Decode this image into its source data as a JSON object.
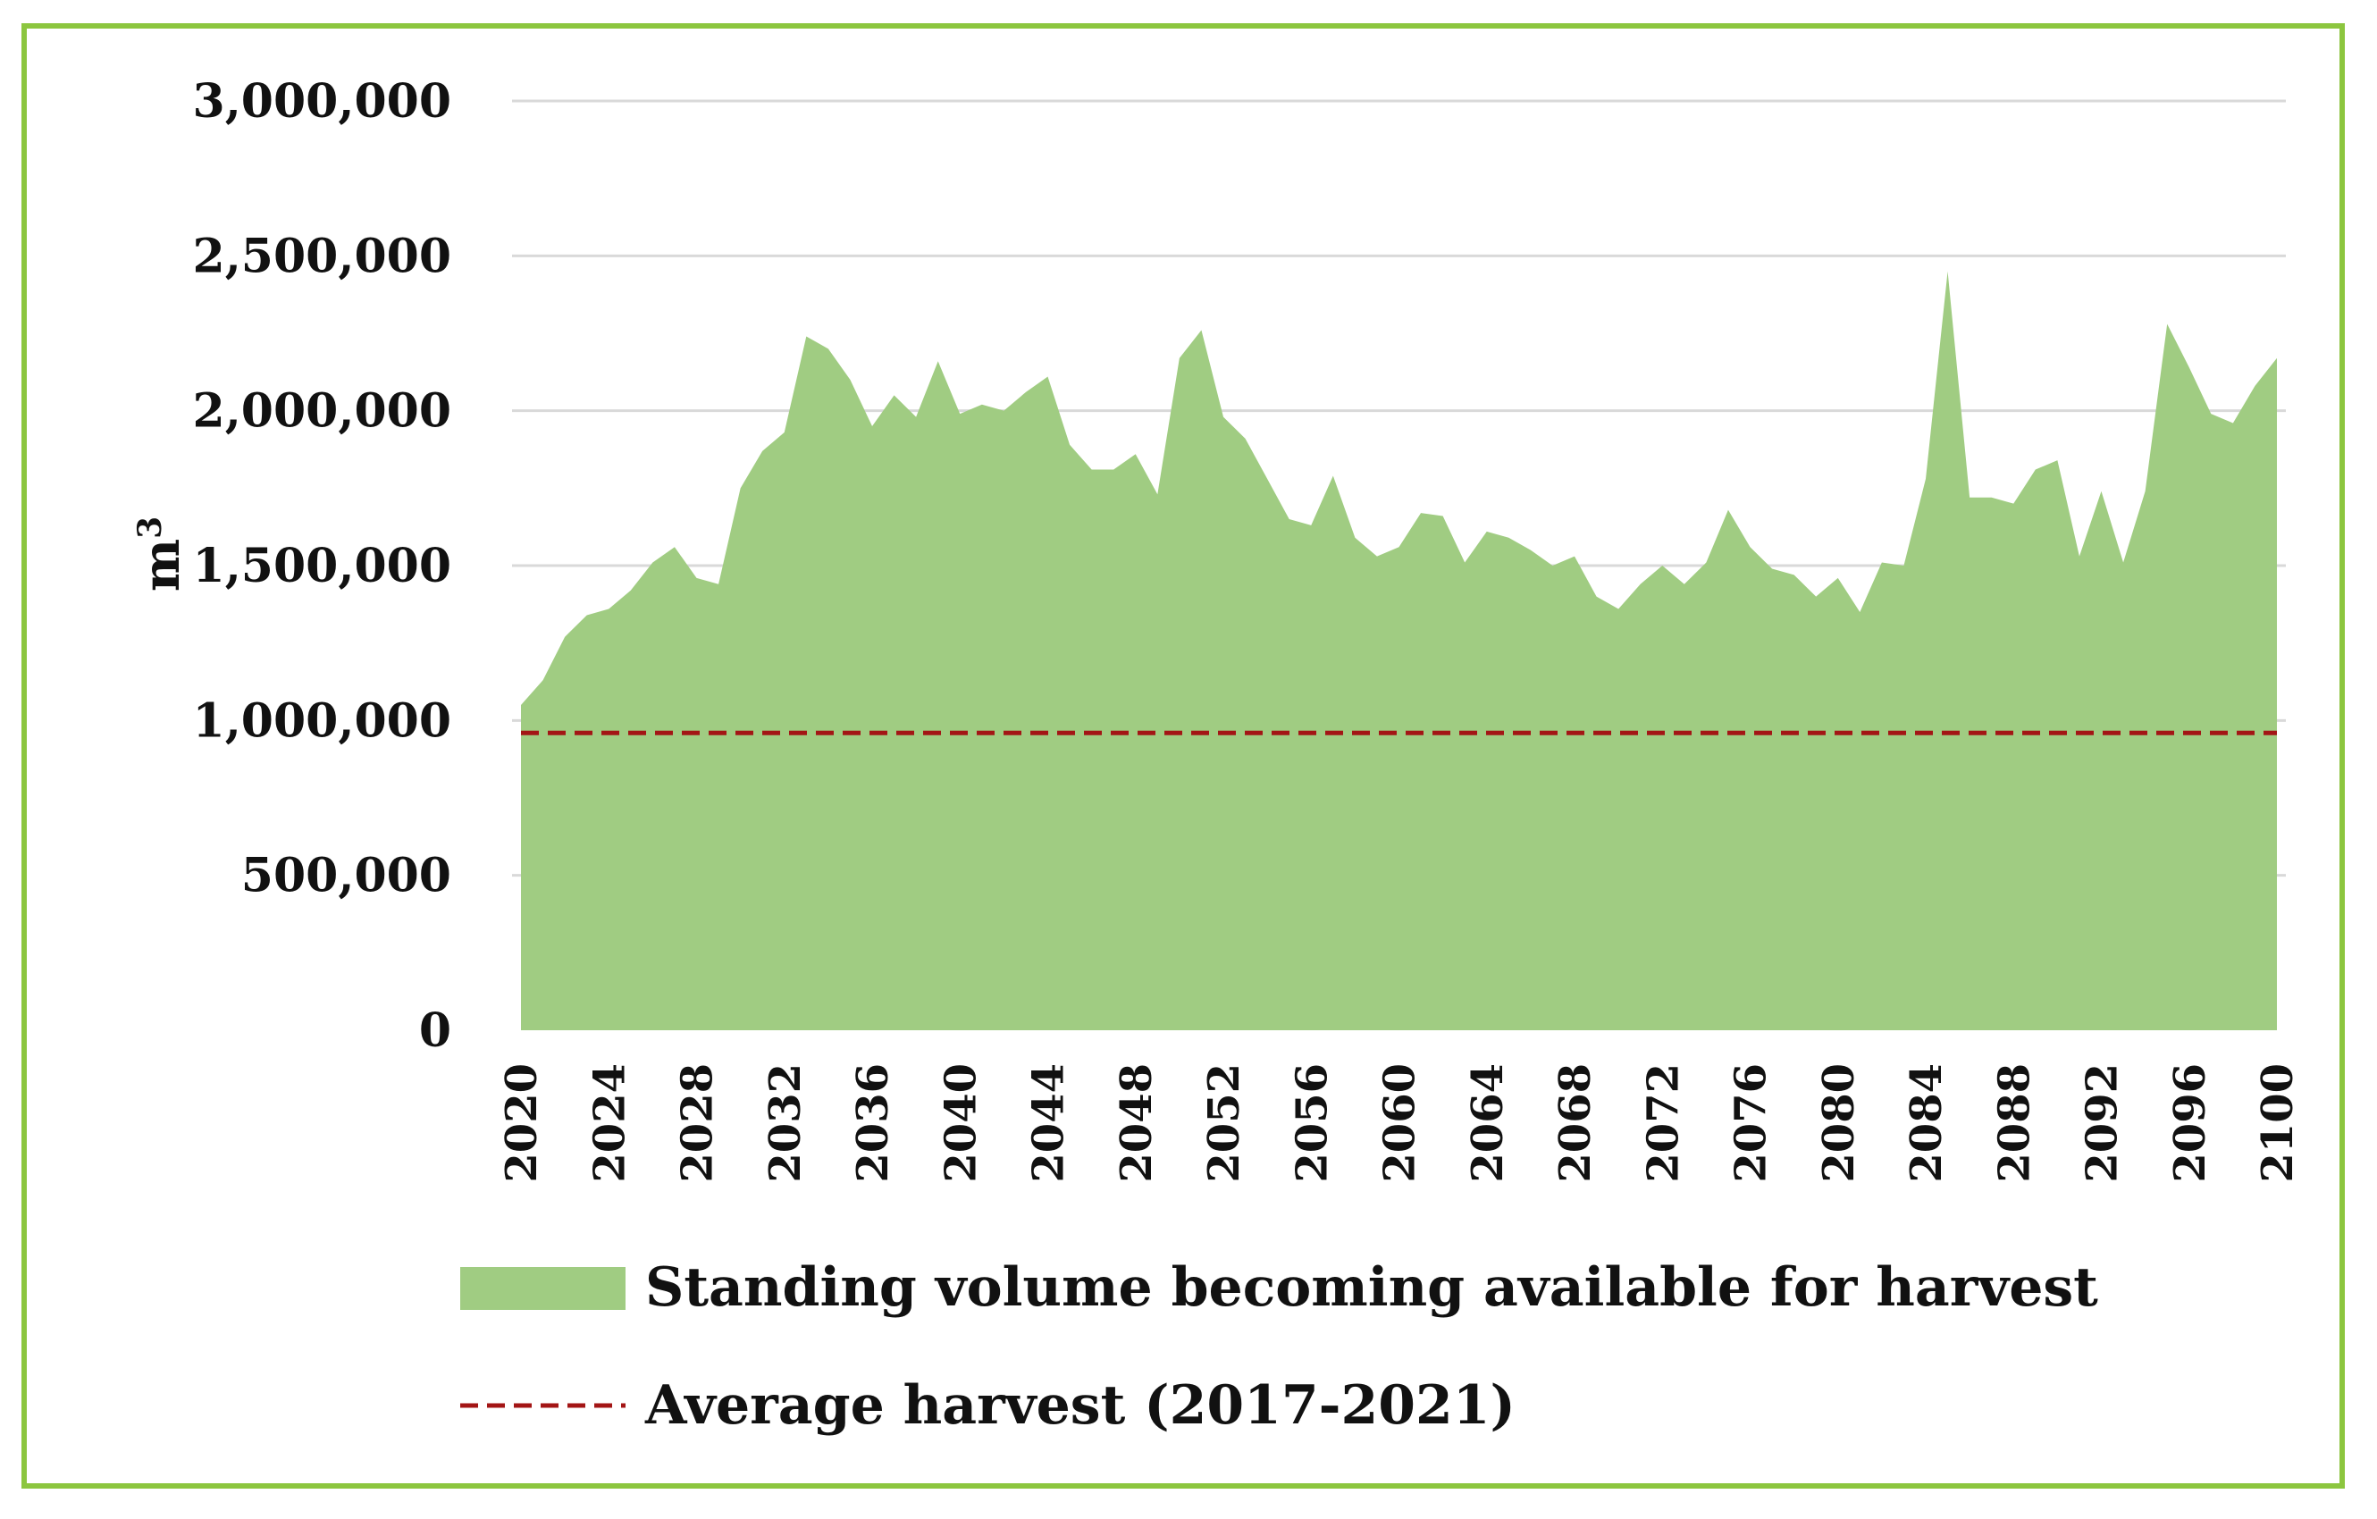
{
  "chart_data": {
    "type": "area",
    "title": "",
    "xlabel": "",
    "ylabel": "m",
    "ylabel_superscript": "3",
    "x": [
      2020,
      2021,
      2022,
      2023,
      2024,
      2025,
      2026,
      2027,
      2028,
      2029,
      2030,
      2031,
      2032,
      2033,
      2034,
      2035,
      2036,
      2037,
      2038,
      2039,
      2040,
      2041,
      2042,
      2043,
      2044,
      2045,
      2046,
      2047,
      2048,
      2049,
      2050,
      2051,
      2052,
      2053,
      2054,
      2055,
      2056,
      2057,
      2058,
      2059,
      2060,
      2061,
      2062,
      2063,
      2064,
      2065,
      2066,
      2067,
      2068,
      2069,
      2070,
      2071,
      2072,
      2073,
      2074,
      2075,
      2076,
      2077,
      2078,
      2079,
      2080,
      2081,
      2082,
      2083,
      2084,
      2085,
      2086,
      2087,
      2088,
      2089,
      2090,
      2091,
      2092,
      2093,
      2094,
      2095,
      2096,
      2097,
      2098,
      2099,
      2100
    ],
    "x_ticks": [
      "2020",
      "2024",
      "2028",
      "2032",
      "2036",
      "2040",
      "2044",
      "2048",
      "2052",
      "2056",
      "2060",
      "2064",
      "2068",
      "2072",
      "2076",
      "2080",
      "2084",
      "2088",
      "2092",
      "2096",
      "2100"
    ],
    "ylim": [
      0,
      3000000
    ],
    "y_ticks": [
      0,
      500000,
      1000000,
      1500000,
      2000000,
      2500000,
      3000000
    ],
    "y_tick_labels": [
      "0",
      "500,000",
      "1,000,000",
      "1,500,000",
      "2,000,000",
      "2,500,000",
      "3,000,000"
    ],
    "grid": true,
    "legend_position": "bottom",
    "series": [
      {
        "name": "Standing volume becoming available for harvest",
        "kind": "area",
        "color": "#a0cc82",
        "values": [
          1050000,
          1130000,
          1270000,
          1340000,
          1360000,
          1420000,
          1510000,
          1560000,
          1460000,
          1440000,
          1750000,
          1870000,
          1930000,
          2240000,
          2200000,
          2100000,
          1950000,
          2050000,
          1980000,
          2160000,
          1990000,
          2020000,
          2000000,
          2060000,
          2110000,
          1890000,
          1810000,
          1810000,
          1860000,
          1730000,
          2170000,
          2260000,
          1980000,
          1910000,
          1780000,
          1650000,
          1630000,
          1790000,
          1590000,
          1530000,
          1560000,
          1670000,
          1660000,
          1510000,
          1610000,
          1590000,
          1550000,
          1500000,
          1530000,
          1400000,
          1360000,
          1440000,
          1500000,
          1440000,
          1510000,
          1680000,
          1560000,
          1490000,
          1470000,
          1400000,
          1460000,
          1350000,
          1510000,
          1500000,
          1780000,
          2450000,
          1720000,
          1720000,
          1700000,
          1810000,
          1840000,
          1530000,
          1740000,
          1510000,
          1740000,
          2280000,
          2140000,
          1990000,
          1960000,
          2080000,
          2170000
        ]
      },
      {
        "name": "Average harvest (2017-2021)",
        "kind": "dashed-line",
        "color": "#a31515",
        "value": 960000
      }
    ]
  }
}
